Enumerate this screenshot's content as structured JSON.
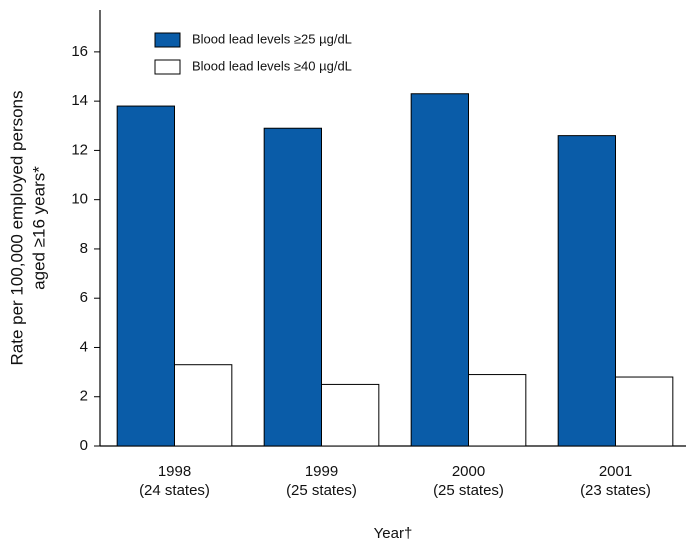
{
  "chart_data": {
    "type": "bar",
    "ylabel": [
      "Rate per 100,000 employed persons",
      "aged ≥16 years*"
    ],
    "xlabel": "Year†",
    "categories": [
      [
        "1998",
        "(24 states)"
      ],
      [
        "1999",
        "(25 states)"
      ],
      [
        "2000",
        "(25 states)"
      ],
      [
        "2001",
        "(23 states)"
      ]
    ],
    "series": [
      {
        "name": "Blood lead levels ≥25 µg/dL",
        "color": "#0a5ca8",
        "values": [
          13.8,
          12.9,
          14.3,
          12.6
        ]
      },
      {
        "name": "Blood lead levels ≥40 µg/dL",
        "color": "#ffffff",
        "values": [
          3.3,
          2.5,
          2.9,
          2.8
        ]
      }
    ],
    "ylim": [
      0,
      17.7
    ],
    "yticks": [
      0,
      2,
      4,
      6,
      8,
      10,
      12,
      14,
      16
    ],
    "legend": "upper left"
  }
}
